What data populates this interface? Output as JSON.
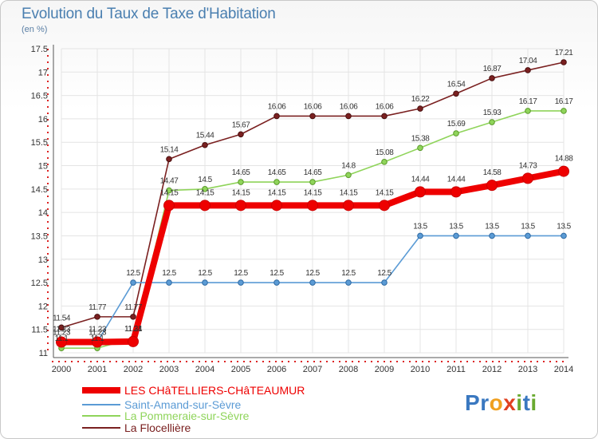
{
  "title": "Evolution du Taux de Taxe d'Habitation",
  "subtitle": "(en %)",
  "brand": {
    "letters": [
      "P",
      "r",
      "o",
      "x",
      "i",
      "t",
      "i"
    ],
    "colors": [
      "#3a78c0",
      "#3a78c0",
      "#f0a020",
      "#e04020",
      "#6aaa30",
      "#3a78c0",
      "#6aaa30"
    ]
  },
  "chart_data": {
    "type": "line",
    "title": "Evolution du Taux de Taxe d'Habitation",
    "ylabel": "(en %)",
    "xlabel": "",
    "x": [
      "2000",
      "2001",
      "2002",
      "2003",
      "2004",
      "2005",
      "2006",
      "2007",
      "2008",
      "2009",
      "2010",
      "2011",
      "2012",
      "2013",
      "2014"
    ],
    "ylim": [
      11,
      17.5
    ],
    "yticks": [
      "11",
      "11.5",
      "12",
      "12.5",
      "13",
      "13.5",
      "14",
      "14.5",
      "15",
      "15.5",
      "16",
      "16.5",
      "17",
      "17.5"
    ],
    "grid": true,
    "legend": "bottom-left",
    "series": [
      {
        "name": "LES CHâTELLIERS-CHâTEAUMUR",
        "color": "#ee0000",
        "values": [
          11.23,
          11.23,
          11.24,
          14.15,
          14.15,
          14.15,
          14.15,
          14.15,
          14.15,
          14.15,
          14.44,
          14.44,
          14.58,
          14.73,
          14.88
        ]
      },
      {
        "name": "Saint-Amand-sur-Sèvre",
        "color": "#5b9bd5",
        "values": [
          11.23,
          11.23,
          12.5,
          12.5,
          12.5,
          12.5,
          12.5,
          12.5,
          12.5,
          12.5,
          13.5,
          13.5,
          13.5,
          13.5,
          13.5
        ]
      },
      {
        "name": "La Pommeraie-sur-Sèvre",
        "color": "#8fd45a",
        "values": [
          11.1,
          11.1,
          11.31,
          14.47,
          14.5,
          14.65,
          14.65,
          14.65,
          14.8,
          15.08,
          15.38,
          15.69,
          15.93,
          16.17,
          16.17
        ]
      },
      {
        "name": "La Flocellière",
        "color": "#7a2020",
        "values": [
          11.54,
          11.77,
          11.77,
          15.14,
          15.44,
          15.67,
          16.06,
          16.06,
          16.06,
          16.06,
          16.22,
          16.54,
          16.87,
          17.04,
          17.21
        ]
      }
    ]
  }
}
